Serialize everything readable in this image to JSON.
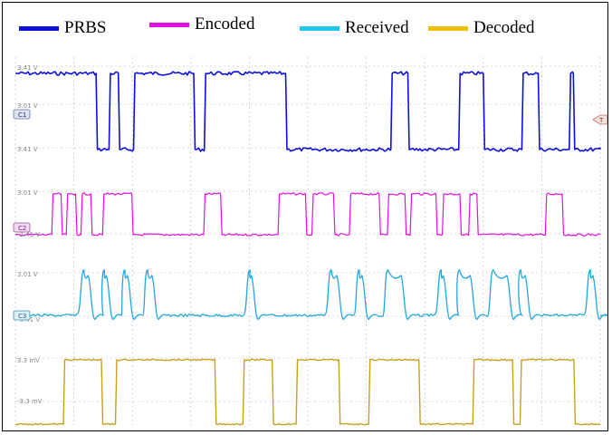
{
  "chart_data": {
    "type": "line",
    "title": "",
    "xlabel": "",
    "ylabel": "",
    "legend_placement": "top",
    "grid": true,
    "series": [
      {
        "name": "PRBS",
        "color": "#1010dd",
        "bits": "1101010101100101101101010101101110110011011001011000110000",
        "transitions_x": [
          0.138,
          0.16,
          0.176,
          0.202,
          0.305,
          0.323,
          0.462,
          0.642,
          0.671,
          0.758,
          0.8,
          0.866,
          0.894,
          0.947,
          0.954
        ]
      },
      {
        "name": "Encoded",
        "color": "#e010e0",
        "pulses_x": [
          [
            0.062,
            0.078
          ],
          [
            0.087,
            0.103
          ],
          [
            0.112,
            0.129
          ],
          [
            0.149,
            0.199
          ],
          [
            0.322,
            0.351
          ],
          [
            0.449,
            0.496
          ],
          [
            0.507,
            0.544
          ],
          [
            0.571,
            0.622
          ],
          [
            0.636,
            0.666
          ],
          [
            0.675,
            0.719
          ],
          [
            0.73,
            0.76
          ],
          [
            0.775,
            0.789
          ],
          [
            0.906,
            0.935
          ]
        ]
      },
      {
        "name": "Received",
        "color": "#20a8e0",
        "pulses_x": [
          [
            0.108,
            0.129
          ],
          [
            0.143,
            0.16
          ],
          [
            0.178,
            0.196
          ],
          [
            0.217,
            0.238
          ],
          [
            0.392,
            0.408
          ],
          [
            0.531,
            0.554
          ],
          [
            0.579,
            0.597
          ],
          [
            0.628,
            0.664
          ],
          [
            0.719,
            0.736
          ],
          [
            0.75,
            0.782
          ],
          [
            0.808,
            0.845
          ],
          [
            0.855,
            0.876
          ],
          [
            0.974,
            0.992
          ]
        ]
      },
      {
        "name": "Decoded",
        "color": "#c8a020",
        "pulses_x": [
          [
            0.082,
            0.147
          ],
          [
            0.171,
            0.341
          ],
          [
            0.389,
            0.439
          ],
          [
            0.48,
            0.553
          ],
          [
            0.604,
            0.69
          ],
          [
            0.782,
            0.85
          ],
          [
            0.863,
            0.955
          ]
        ]
      }
    ]
  },
  "axis_tick_labels": {
    "prbs": [
      "3.41 V",
      "3.01 V",
      "3.41 V"
    ],
    "encoded": [
      "3.01 V",
      "-3.41 V"
    ],
    "received": [
      "3.01 V",
      "-3.41 V"
    ],
    "decoded": [
      "3.3 mV",
      "-3.3 mV"
    ]
  },
  "channel_markers": {
    "c1": "C1",
    "c2": "C2",
    "c3": "C3",
    "ref": "T"
  },
  "colors": {
    "grid": "#b8b8b8",
    "plot_bg": "#ffffff"
  }
}
